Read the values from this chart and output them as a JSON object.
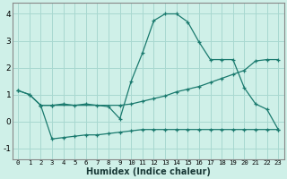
{
  "xlabel": "Humidex (Indice chaleur)",
  "background_color": "#cff0e8",
  "grid_color": "#a8d8d0",
  "line_color": "#1a7a6e",
  "ylim": [
    -1.4,
    4.4
  ],
  "xlim": [
    -0.5,
    23.5
  ],
  "yticks": [
    -1,
    0,
    1,
    2,
    3,
    4
  ],
  "xticks": [
    0,
    1,
    2,
    3,
    4,
    5,
    6,
    7,
    8,
    9,
    10,
    11,
    12,
    13,
    14,
    15,
    16,
    17,
    18,
    19,
    20,
    21,
    22,
    23
  ],
  "line1_x": [
    0,
    1,
    2,
    3,
    4,
    5,
    6,
    7,
    8,
    9,
    10,
    11,
    12,
    13,
    14,
    15,
    16,
    17,
    18,
    19,
    20,
    21,
    22,
    23
  ],
  "line1_y": [
    1.15,
    1.0,
    0.6,
    0.6,
    0.65,
    0.6,
    0.65,
    0.6,
    0.55,
    0.1,
    1.5,
    2.55,
    3.75,
    4.0,
    4.0,
    3.7,
    2.95,
    2.3,
    2.3,
    2.3,
    1.25,
    0.65,
    0.45,
    -0.3
  ],
  "line2_x": [
    0,
    1,
    2,
    3,
    9,
    10,
    11,
    12,
    13,
    14,
    15,
    16,
    17,
    18,
    19,
    20,
    21,
    22,
    23
  ],
  "line2_y": [
    1.15,
    1.0,
    0.6,
    0.6,
    0.6,
    0.65,
    0.75,
    0.85,
    0.95,
    1.1,
    1.2,
    1.3,
    1.45,
    1.6,
    1.75,
    1.9,
    2.25,
    2.3,
    2.3
  ],
  "line3_x": [
    2,
    3,
    4,
    5,
    6,
    7,
    8,
    9,
    10,
    11,
    12,
    13,
    14,
    15,
    16,
    17,
    18,
    19,
    20,
    21,
    22,
    23
  ],
  "line3_y": [
    0.6,
    -0.65,
    -0.6,
    -0.55,
    -0.5,
    -0.5,
    -0.45,
    -0.4,
    -0.35,
    -0.3,
    -0.3,
    -0.3,
    -0.3,
    -0.3,
    -0.3,
    -0.3,
    -0.3,
    -0.3,
    -0.3,
    -0.3,
    -0.3,
    -0.3
  ]
}
